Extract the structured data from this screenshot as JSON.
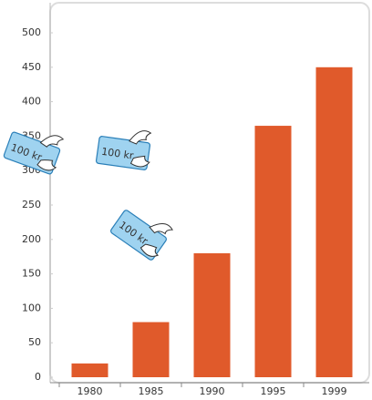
{
  "chart_data": {
    "type": "bar",
    "categories": [
      "1980",
      "1985",
      "1990",
      "1995",
      "1999"
    ],
    "values": [
      20,
      80,
      180,
      365,
      450
    ],
    "color": "#e05a2b",
    "ylim": [
      0,
      500
    ],
    "yticks": [
      0,
      50,
      100,
      150,
      200,
      250,
      300,
      350,
      400,
      450,
      500
    ],
    "grid": false,
    "annotations": [
      "100 kr",
      "100 kr",
      "100 kr"
    ]
  }
}
